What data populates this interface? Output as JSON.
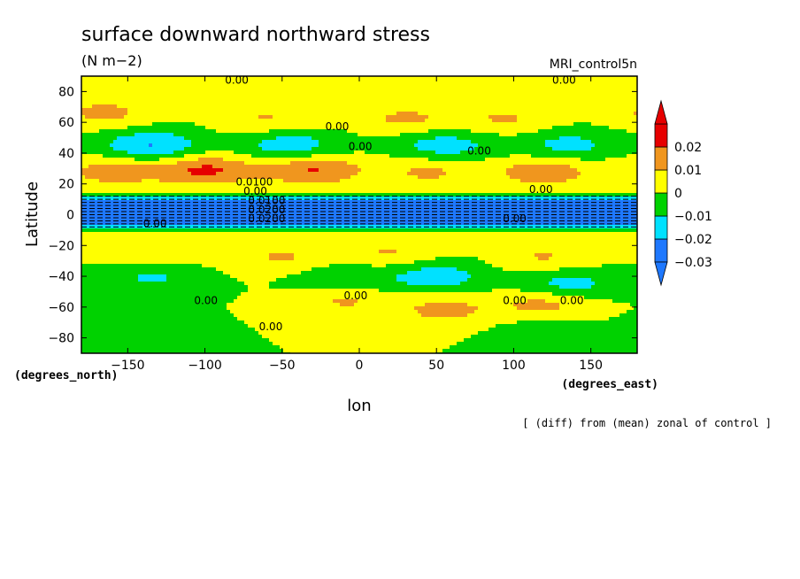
{
  "chart_data": {
    "type": "heatmap",
    "subtype": "filled-contour map",
    "title": "surface downward northward stress",
    "units": "(N m−2)",
    "model": "MRI_control5n",
    "xlabel": "lon",
    "ylabel": "Latitude",
    "x_units_label": "(degrees_east)",
    "y_units_label": "(degrees_north)",
    "note": "[ (diff) from (mean) zonal of control ]",
    "xlim": [
      -180,
      180
    ],
    "ylim": [
      -90,
      90
    ],
    "x_ticks": [
      -150,
      -100,
      -50,
      0,
      50,
      100,
      150
    ],
    "y_ticks": [
      80,
      60,
      40,
      20,
      0,
      -20,
      -40,
      -60,
      -80
    ],
    "colorbar": {
      "levels": [
        -0.03,
        -0.02,
        -0.01,
        0,
        0.01,
        0.02
      ],
      "level_labels": [
        "−0.03",
        "−0.02",
        "−0.01",
        "0",
        "0.01",
        "0.02"
      ],
      "colors": [
        "#1e78ff",
        "#00e1ff",
        "#00d200",
        "#ffff00",
        "#f0961e",
        "#e60000"
      ],
      "extend": "both"
    },
    "contour_labels": [
      "0.00",
      "0.00",
      "0.00",
      "0.00",
      "0.00",
      "0.0100",
      "0.00",
      "0.0100",
      "0.0200",
      "0.0200",
      "0.00",
      "0.00",
      "0.00",
      "0.00",
      "0.00",
      "0.00",
      "0.00",
      "0.00"
    ],
    "features": [
      {
        "lon": -160,
        "lat": 28,
        "value": 0.015
      },
      {
        "lon": -100,
        "lat": 29,
        "value": 0.022
      },
      {
        "lon": -30,
        "lat": 29,
        "value": 0.021
      },
      {
        "lon": 45,
        "lat": 28,
        "value": 0.012
      },
      {
        "lon": 120,
        "lat": 28,
        "value": 0.017
      },
      {
        "lon": -165,
        "lat": 66,
        "value": 0.013
      },
      {
        "lon": -60,
        "lat": 62,
        "value": 0.011
      },
      {
        "lon": 30,
        "lat": 62,
        "value": 0.012
      },
      {
        "lon": 95,
        "lat": 62,
        "value": 0.011
      },
      {
        "lon": -135,
        "lat": 45,
        "value": -0.021
      },
      {
        "lon": -45,
        "lat": 45,
        "value": -0.017
      },
      {
        "lon": 55,
        "lat": 45,
        "value": -0.016
      },
      {
        "lon": 135,
        "lat": 45,
        "value": -0.014
      },
      {
        "lon": -135,
        "lat": -25,
        "value": 0.011
      },
      {
        "lon": -50,
        "lat": -28,
        "value": 0.011
      },
      {
        "lon": 20,
        "lat": -25,
        "value": 0.011
      },
      {
        "lon": 120,
        "lat": -28,
        "value": 0.011
      },
      {
        "lon": -135,
        "lat": -40,
        "value": -0.012
      },
      {
        "lon": -10,
        "lat": -42,
        "value": -0.011
      },
      {
        "lon": 50,
        "lat": -40,
        "value": -0.016
      },
      {
        "lon": 135,
        "lat": -45,
        "value": -0.015
      },
      {
        "lon": -10,
        "lat": -55,
        "value": 0.012
      },
      {
        "lon": 55,
        "lat": -62,
        "value": 0.013
      },
      {
        "lon": 120,
        "lat": -58,
        "value": 0.014
      },
      {
        "lon": -150,
        "lat": -75,
        "value": -0.006
      },
      {
        "lon": 120,
        "lat": -75,
        "value": -0.006
      }
    ],
    "equatorial_band": {
      "lat_min": -8,
      "lat_max": 12,
      "value": -0.03
    }
  }
}
